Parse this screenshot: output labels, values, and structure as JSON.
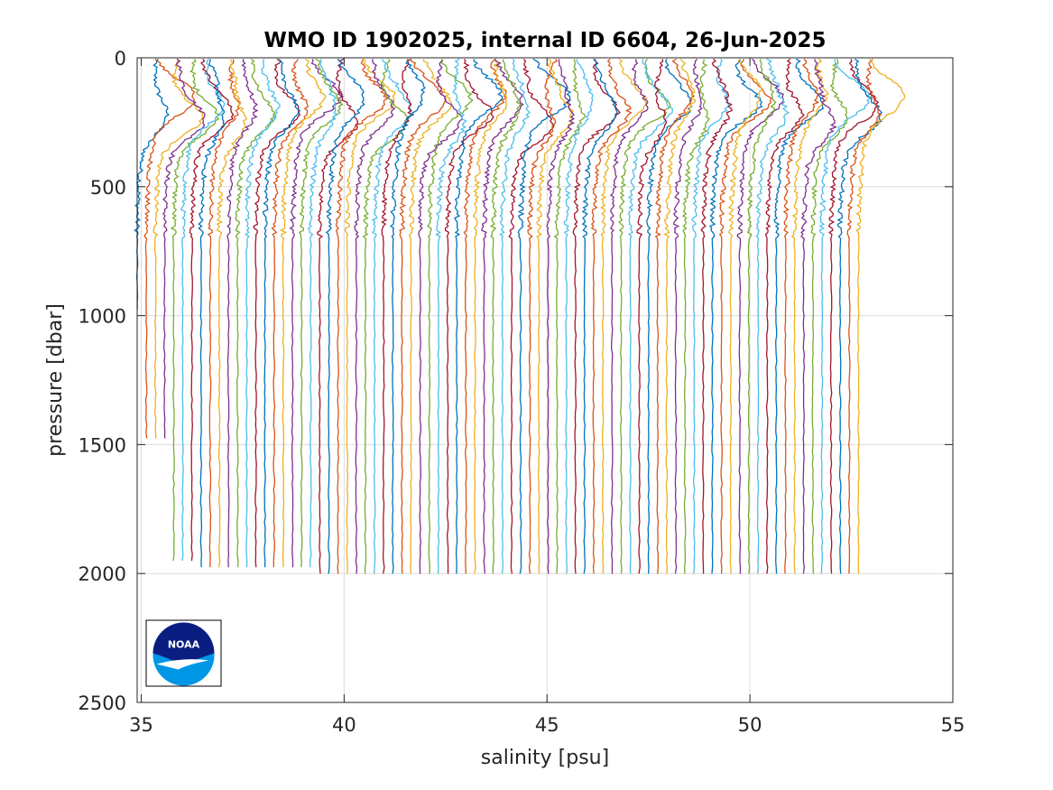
{
  "chart_data": {
    "type": "line",
    "title": "WMO ID 1902025, internal ID 6604, 26-Jun-2025",
    "xlabel": "salinity [psu]",
    "ylabel": "pressure [dbar]",
    "xlim": [
      34.9,
      55
    ],
    "ylim": [
      0,
      2500
    ],
    "y_reversed": true,
    "grid": true,
    "xticks": [
      "35",
      "40",
      "45",
      "50",
      "55"
    ],
    "yticks": [
      "0",
      "500",
      "1000",
      "1500",
      "2000",
      "2500"
    ],
    "x_offset_note": "",
    "series_colors": [
      "#0072BD",
      "#D95319",
      "#EDB120",
      "#7E2F8E",
      "#77AC30",
      "#4DBEEE",
      "#A2142F"
    ],
    "profiles": {
      "count": 80,
      "deep_salinity_start": 34.9,
      "deep_salinity_end": 52.75,
      "deep_salinity_step": 0.225,
      "surface_pressure": 5,
      "max_pressures": [
        980,
        1500,
        1500,
        1500,
        1960,
        1975,
        1975,
        1980,
        1985,
        1990,
        1990,
        2000,
        2000,
        2000,
        2000,
        2000,
        2000,
        2000,
        2000,
        2000,
        2005,
        2005,
        2005,
        2005,
        2005,
        2005,
        2005,
        2005,
        2005,
        2005,
        2005,
        2005,
        2005,
        2005,
        2005,
        2005,
        2005,
        2005,
        2005,
        2005,
        2005,
        2005,
        2005,
        2005,
        2005,
        2005,
        2005,
        2005,
        2005,
        2005,
        2005,
        2005,
        2005,
        2005,
        2005,
        2005,
        2005,
        2005,
        2005,
        2005,
        2005,
        2005,
        2005,
        2005,
        2005,
        2005,
        2005,
        2005,
        2005,
        2005,
        2005,
        2005,
        2015,
        2005,
        2005,
        2005,
        2005,
        2005,
        2005,
        2005
      ]
    },
    "logo": {
      "name": "noaa-logo",
      "text": "NOAA"
    }
  }
}
